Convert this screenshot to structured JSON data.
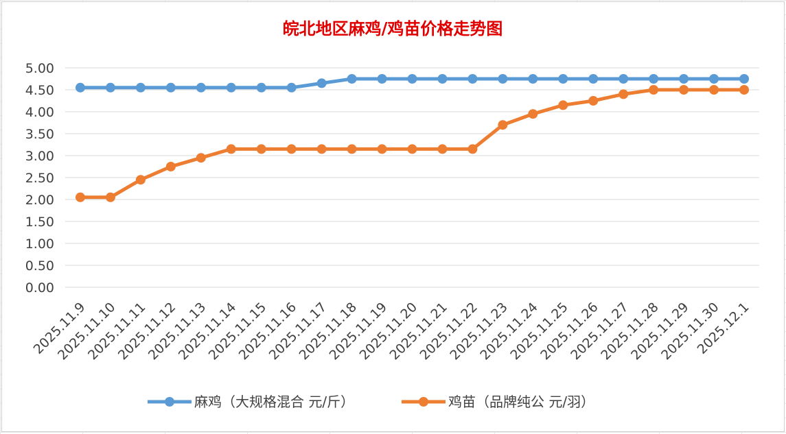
{
  "chart_data": {
    "type": "line",
    "title": "皖北地区麻鸡/鸡苗价格走势图",
    "xlabel": "",
    "ylabel": "",
    "ylim": [
      0,
      5
    ],
    "yticks": [
      "0.00",
      "0.50",
      "1.00",
      "1.50",
      "2.00",
      "2.50",
      "3.00",
      "3.50",
      "4.00",
      "4.50",
      "5.00"
    ],
    "categories": [
      "2025.11.9",
      "2025.11.10",
      "2025.11.11",
      "2025.11.12",
      "2025.11.13",
      "2025.11.14",
      "2025.11.15",
      "2025.11.16",
      "2025.11.17",
      "2025.11.18",
      "2025.11.19",
      "2025.11.20",
      "2025.11.21",
      "2025.11.22",
      "2025.11.23",
      "2025.11.24",
      "2025.11.25",
      "2025.11.26",
      "2025.11.27",
      "2025.11.28",
      "2025.11.29",
      "2025.11.30",
      "2025.12.1"
    ],
    "series": [
      {
        "name": "麻鸡（大规格混合 元/斤）",
        "color": "#5b9bd5",
        "values": [
          4.55,
          4.55,
          4.55,
          4.55,
          4.55,
          4.55,
          4.55,
          4.55,
          4.65,
          4.75,
          4.75,
          4.75,
          4.75,
          4.75,
          4.75,
          4.75,
          4.75,
          4.75,
          4.75,
          4.75,
          4.75,
          4.75,
          4.75
        ]
      },
      {
        "name": "鸡苗（品牌纯公 元/羽）",
        "color": "#ed7d31",
        "values": [
          2.05,
          2.05,
          2.45,
          2.75,
          2.95,
          3.15,
          3.15,
          3.15,
          3.15,
          3.15,
          3.15,
          3.15,
          3.15,
          3.15,
          3.7,
          3.95,
          4.15,
          4.25,
          4.4,
          4.5,
          4.5,
          4.5,
          4.5
        ]
      }
    ],
    "grid": true,
    "legend_position": "bottom"
  }
}
